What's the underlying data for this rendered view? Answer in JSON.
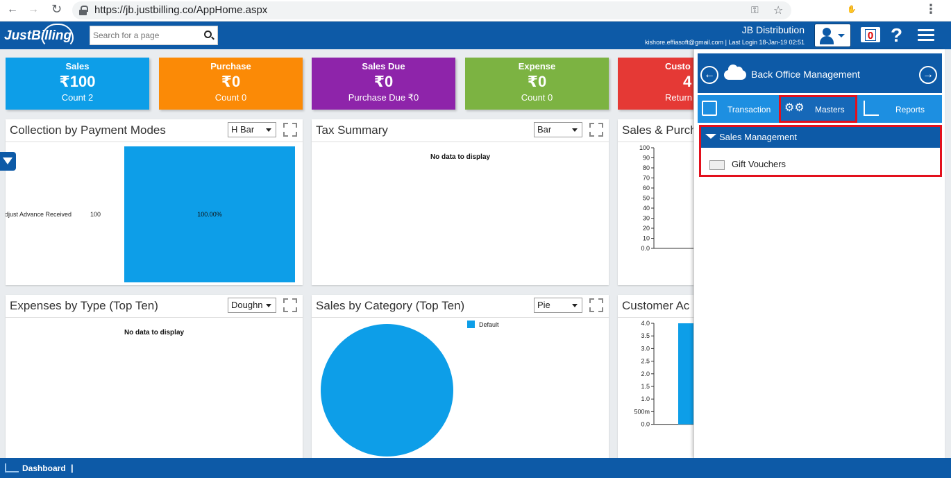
{
  "browser": {
    "url": "https://jb.justbilling.co/AppHome.aspx",
    "back": "←",
    "forward": "→",
    "reload": "↻",
    "key_icon": "⚿",
    "star_icon": "☆",
    "extensions": [
      {
        "name": "grammarly-icon",
        "glyph": "G",
        "color": "#15c39a"
      },
      {
        "name": "bookmark-ext-icon",
        "glyph": "▤",
        "color": "#4a7ab7"
      },
      {
        "name": "adblock-icon",
        "glyph": "✋",
        "color": "#e51a1a"
      },
      {
        "name": "skype-icon",
        "glyph": "S",
        "color": "#00aff0"
      },
      {
        "name": "profile-icon",
        "glyph": "S",
        "color": "#1a73e8"
      }
    ],
    "menu_icon": "⋮"
  },
  "header": {
    "logo": "JustBilling",
    "search_placeholder": "Search for a page",
    "company": "JB Distribution",
    "user_info": "kishore.effiasoft@gmail.com | Last Login 18-Jan-19 02:51",
    "notif_count": "0",
    "help": "?"
  },
  "cards": [
    {
      "title": "Sales",
      "value": "₹100",
      "sub": "Count 2",
      "color": "#0d9ee8"
    },
    {
      "title": "Purchase",
      "value": "₹0",
      "sub": "Count 0",
      "color": "#fb8a06"
    },
    {
      "title": "Sales Due",
      "value": "₹0",
      "sub": "Purchase Due ₹0",
      "color": "#8e24aa"
    },
    {
      "title": "Expense",
      "value": "₹0",
      "sub": "Count 0",
      "color": "#7cb342"
    },
    {
      "title": "Custo",
      "value": "4",
      "sub": "Return",
      "color": "#e53935"
    }
  ],
  "panels": {
    "collection": {
      "title": "Collection by Payment Modes",
      "chart_type": "H Bar",
      "category": "Adjust Advance Received",
      "value": "100",
      "percent": "100.00%"
    },
    "tax": {
      "title": "Tax Summary",
      "chart_type": "Bar",
      "nodata": "No data to display"
    },
    "sales_purchase": {
      "title": "Sales & Purch",
      "ticks": [
        "100",
        "90",
        "80",
        "70",
        "60",
        "50",
        "40",
        "30",
        "20",
        "10",
        "0.0"
      ]
    },
    "expenses": {
      "title": "Expenses by Type (Top Ten)",
      "chart_type": "Doughn",
      "nodata": "No data to display"
    },
    "sales_cat": {
      "title": "Sales by Category (Top Ten)",
      "chart_type": "Pie",
      "legend": "Default"
    },
    "customer": {
      "title": "Customer Ac",
      "ticks": [
        "4.0",
        "3.5",
        "3.0",
        "2.5",
        "2.0",
        "1.5",
        "1.0",
        "500m",
        "0.0"
      ]
    }
  },
  "chart_data": [
    {
      "type": "bar",
      "orientation": "horizontal",
      "title": "Collection by Payment Modes",
      "categories": [
        "Adjust Advance Received"
      ],
      "values": [
        100
      ],
      "labels": [
        "100.00%"
      ]
    },
    {
      "type": "bar",
      "title": "Sales & Purch",
      "ylim": [
        0,
        100
      ],
      "series": []
    },
    {
      "type": "pie",
      "title": "Sales by Category (Top Ten)",
      "categories": [
        "Default"
      ],
      "values": [
        100
      ],
      "colors": [
        "#0d9ee8"
      ]
    },
    {
      "type": "bar",
      "title": "Customer Ac",
      "ylim": [
        0,
        4
      ],
      "values": [
        4
      ]
    }
  ],
  "side_panel": {
    "title": "Back Office Management",
    "tabs": [
      "Transaction",
      "Masters",
      "Reports"
    ],
    "active_tab": "Masters",
    "section": "Sales Management",
    "items": [
      "Gift Vouchers"
    ]
  },
  "footer": {
    "label": "Dashboard",
    "sep": "|"
  }
}
